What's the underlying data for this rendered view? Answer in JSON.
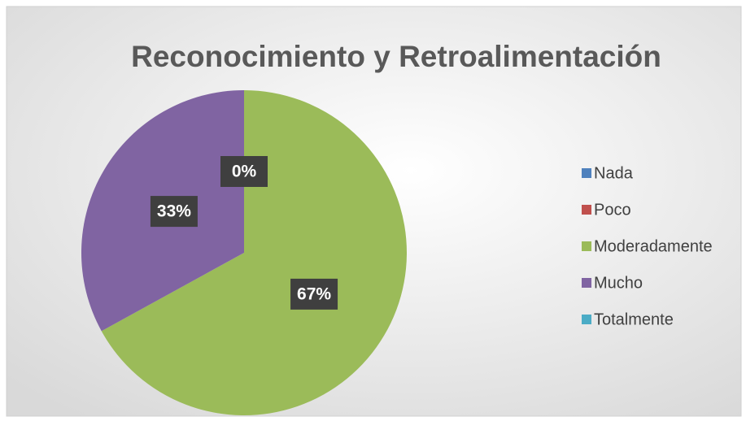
{
  "chart_data": {
    "type": "pie",
    "title": "Reconocimiento y Retroalimentación",
    "categories": [
      "Nada",
      "Poco",
      "Moderadamente",
      "Mucho",
      "Totalmente"
    ],
    "values": [
      0,
      0,
      67,
      33,
      0
    ],
    "value_labels": [
      "0%",
      "0%",
      "67%",
      "33%",
      "0%"
    ],
    "colors": [
      "#4f81bd",
      "#c0504d",
      "#9bbb59",
      "#8064a2",
      "#4bacc6"
    ],
    "legend": "right"
  }
}
